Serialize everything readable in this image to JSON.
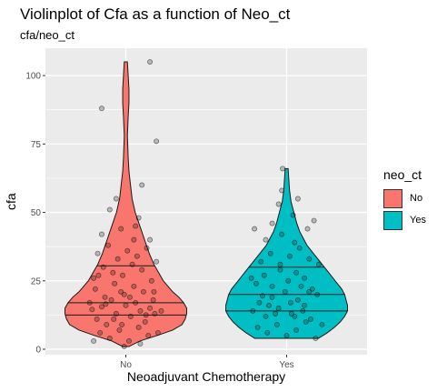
{
  "chart_data": {
    "type": "violin",
    "title": "Violinplot of Cfa as a function of Neo_ct",
    "subtitle": "cfa/neo_ct",
    "xlabel": "Neoadjuvant Chemotherapy",
    "ylabel": "cfa",
    "categories": [
      "No",
      "Yes"
    ],
    "ylim": [
      -2,
      110
    ],
    "yticks": [
      0,
      25,
      50,
      75,
      100
    ],
    "grid": true,
    "legend": {
      "title": "neo_ct",
      "position": "right",
      "entries": [
        {
          "label": "No",
          "color": "#F8766D"
        },
        {
          "label": "Yes",
          "color": "#00BFC4"
        }
      ]
    },
    "series": [
      {
        "category": "No",
        "color": "#F8766D",
        "min": 1,
        "max": 105,
        "quantiles": [
          12.5,
          17,
          30.5
        ],
        "density": [
          [
            1,
            2
          ],
          [
            3,
            9
          ],
          [
            5,
            20
          ],
          [
            7,
            30
          ],
          [
            9,
            36
          ],
          [
            11,
            38
          ],
          [
            13,
            39
          ],
          [
            15,
            39
          ],
          [
            17,
            37
          ],
          [
            19,
            34
          ],
          [
            21,
            30
          ],
          [
            23,
            27
          ],
          [
            25,
            24
          ],
          [
            28,
            21
          ],
          [
            31,
            18
          ],
          [
            35,
            15
          ],
          [
            40,
            12
          ],
          [
            45,
            9
          ],
          [
            50,
            6
          ],
          [
            55,
            4
          ],
          [
            60,
            3
          ],
          [
            65,
            2
          ],
          [
            70,
            1.5
          ],
          [
            78,
            1
          ],
          [
            85,
            1.5
          ],
          [
            90,
            2
          ],
          [
            95,
            2
          ],
          [
            100,
            1.5
          ],
          [
            105,
            1
          ]
        ],
        "jitter": [
          [
            -0.42,
            14.5
          ],
          [
            -0.36,
            11
          ],
          [
            -0.3,
            15.5
          ],
          [
            -0.24,
            9
          ],
          [
            -0.18,
            18
          ],
          [
            -0.12,
            13
          ],
          [
            -0.06,
            21
          ],
          [
            0.0,
            16
          ],
          [
            0.06,
            12
          ],
          [
            0.12,
            17
          ],
          [
            0.18,
            14
          ],
          [
            0.24,
            10
          ],
          [
            0.3,
            15
          ],
          [
            0.36,
            13
          ],
          [
            -0.38,
            22
          ],
          [
            -0.26,
            19
          ],
          [
            -0.14,
            24
          ],
          [
            -0.02,
            20
          ],
          [
            0.1,
            23
          ],
          [
            0.22,
            21
          ],
          [
            0.34,
            18
          ],
          [
            -0.32,
            6
          ],
          [
            -0.2,
            4
          ],
          [
            -0.08,
            7
          ],
          [
            0.04,
            3
          ],
          [
            0.16,
            8
          ],
          [
            0.28,
            5
          ],
          [
            -0.4,
            26
          ],
          [
            -0.28,
            30
          ],
          [
            -0.16,
            28
          ],
          [
            -0.04,
            27
          ],
          [
            0.08,
            31
          ],
          [
            0.2,
            29
          ],
          [
            0.32,
            25
          ],
          [
            -0.35,
            35
          ],
          [
            -0.22,
            38
          ],
          [
            -0.1,
            33
          ],
          [
            0.02,
            36
          ],
          [
            0.14,
            34
          ],
          [
            0.26,
            37
          ],
          [
            0.38,
            32
          ],
          [
            -0.3,
            42
          ],
          [
            -0.06,
            44
          ],
          [
            0.12,
            45
          ],
          [
            0.3,
            40
          ],
          [
            -0.2,
            51
          ],
          [
            0.16,
            48
          ],
          [
            -0.12,
            55
          ],
          [
            0.2,
            60
          ],
          [
            0.38,
            76
          ],
          [
            -0.3,
            88
          ],
          [
            0.3,
            105
          ],
          [
            -0.4,
            3
          ],
          [
            0.4,
            6
          ],
          [
            -0.02,
            1
          ],
          [
            -0.15,
            11
          ],
          [
            0.25,
            12.5
          ],
          [
            0.05,
            19
          ],
          [
            -0.25,
            16.5
          ],
          [
            0.35,
            21
          ],
          [
            -0.45,
            17
          ],
          [
            0.44,
            14
          ],
          [
            -0.05,
            9
          ],
          [
            0.18,
            2
          ],
          [
            -0.34,
            27
          ],
          [
            0.1,
            40
          ]
        ]
      },
      {
        "category": "Yes",
        "color": "#00BFC4",
        "min": 4,
        "max": 66,
        "quantiles": [
          14,
          20,
          30
        ],
        "density": [
          [
            4,
            22
          ],
          [
            6,
            28
          ],
          [
            8,
            33
          ],
          [
            10,
            37
          ],
          [
            12,
            40
          ],
          [
            14,
            42
          ],
          [
            16,
            42
          ],
          [
            18,
            41
          ],
          [
            20,
            40
          ],
          [
            22,
            38
          ],
          [
            24,
            35
          ],
          [
            26,
            32
          ],
          [
            28,
            29
          ],
          [
            30,
            26
          ],
          [
            32,
            23
          ],
          [
            34,
            20
          ],
          [
            36,
            17
          ],
          [
            38,
            14
          ],
          [
            40,
            12
          ],
          [
            43,
            9
          ],
          [
            46,
            7
          ],
          [
            50,
            5
          ],
          [
            54,
            3
          ],
          [
            58,
            2
          ],
          [
            62,
            1.5
          ],
          [
            66,
            1
          ]
        ],
        "jitter": [
          [
            -0.42,
            14
          ],
          [
            -0.34,
            17
          ],
          [
            -0.26,
            12
          ],
          [
            -0.18,
            19
          ],
          [
            -0.1,
            15
          ],
          [
            -0.02,
            21
          ],
          [
            0.06,
            13
          ],
          [
            0.14,
            18
          ],
          [
            0.22,
            16
          ],
          [
            0.3,
            11
          ],
          [
            0.38,
            20
          ],
          [
            -0.38,
            24
          ],
          [
            -0.28,
            27
          ],
          [
            -0.18,
            23
          ],
          [
            -0.08,
            29
          ],
          [
            0.02,
            25
          ],
          [
            0.12,
            28
          ],
          [
            0.22,
            26
          ],
          [
            0.32,
            22
          ],
          [
            -0.36,
            8
          ],
          [
            -0.24,
            6
          ],
          [
            -0.12,
            9
          ],
          [
            0.0,
            5
          ],
          [
            0.12,
            7
          ],
          [
            0.24,
            10
          ],
          [
            0.36,
            4
          ],
          [
            -0.32,
            32
          ],
          [
            -0.2,
            35
          ],
          [
            -0.08,
            31
          ],
          [
            0.04,
            34
          ],
          [
            0.16,
            37
          ],
          [
            0.28,
            33
          ],
          [
            -0.26,
            40
          ],
          [
            -0.06,
            42
          ],
          [
            0.1,
            39
          ],
          [
            0.26,
            44
          ],
          [
            -0.18,
            46
          ],
          [
            0.08,
            49
          ],
          [
            0.34,
            47
          ],
          [
            -0.1,
            53
          ],
          [
            0.14,
            55
          ],
          [
            -0.06,
            58
          ],
          [
            -0.05,
            66
          ],
          [
            -0.4,
            44
          ],
          [
            0.4,
            31
          ],
          [
            -0.44,
            26
          ],
          [
            0.44,
            9
          ],
          [
            0.2,
            14
          ],
          [
            -0.14,
            13
          ],
          [
            0.05,
            17
          ],
          [
            -0.3,
            19.5
          ],
          [
            0.28,
            21
          ],
          [
            -0.22,
            16
          ],
          [
            0.1,
            12
          ],
          [
            0.18,
            23
          ]
        ]
      }
    ]
  }
}
